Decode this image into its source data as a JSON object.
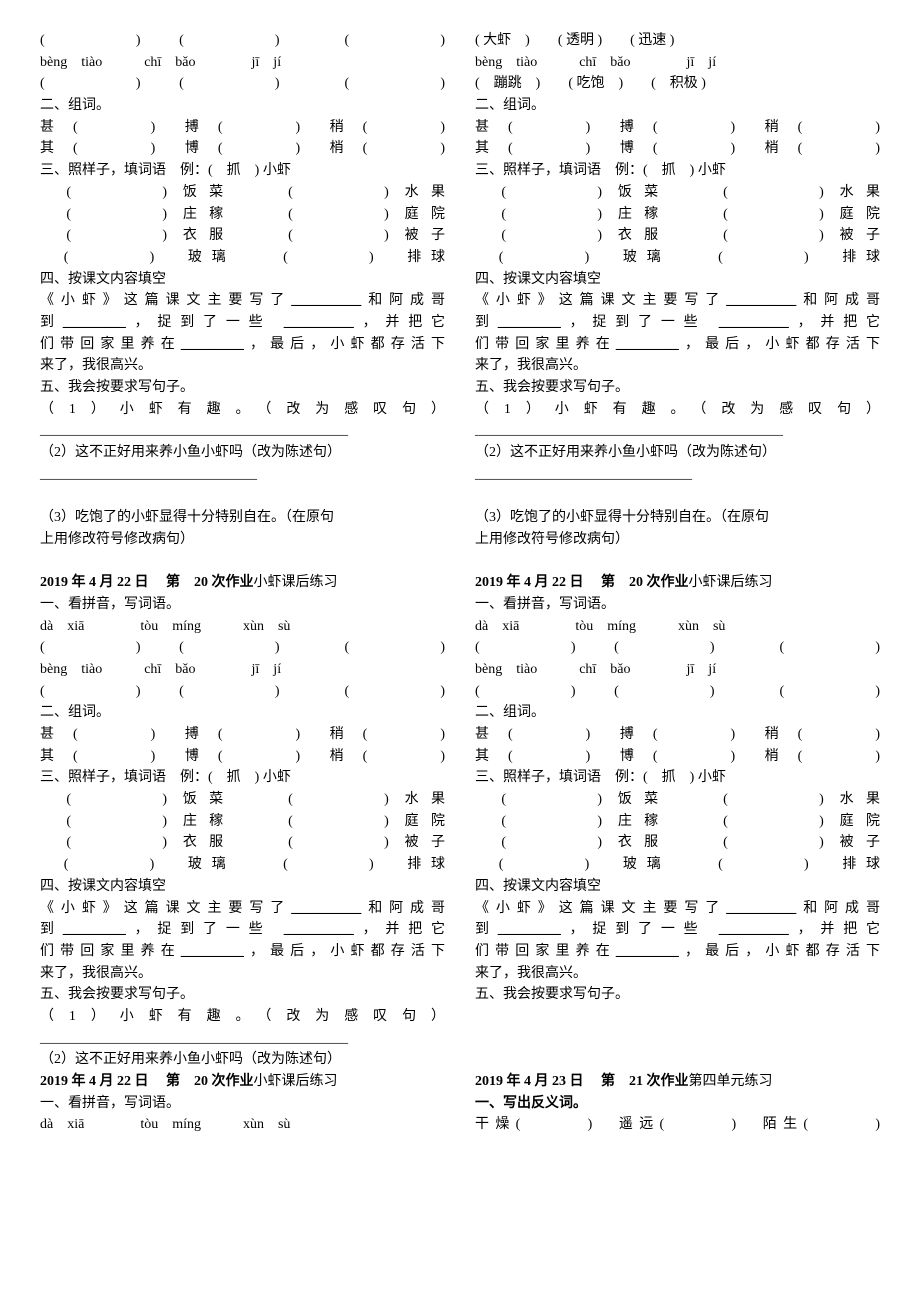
{
  "pinyin_row1": "(　　　)　(　　　)　　(　　　)",
  "pinyin_row1_filled": "( 大虾　)　　( 透明 )　　( 迅速 )",
  "pinyin_a": "bèng　tiào　　　chī　bǎo　　　　jī　jí",
  "pinyin_row2": "(　　　)　(　　　)　　(　　　)",
  "pinyin_row2_filled": "(　蹦跳　)　　( 吃饱　)　　(　积极 )",
  "s2_title": "二、组词。",
  "s2_l1": "甚 (　　　)　搏 (　　　)　稍 (　　　)",
  "s2_l2": "其 (　　　)　博 (　　　)　梢 (　　　)",
  "s3_title": "三、照样子，填词语　例：(　抓　) 小虾",
  "s3_l1": "　(　　　) 饭菜　　(　　　) 水果",
  "s3_l2": "　(　　　) 庄稼　　(　　　) 庭院",
  "s3_l3": "　(　　　) 衣服　　(　　　) 被子",
  "s3_l4": "　(　　　)　玻璃　　(　　　)　排球",
  "s4_title": "四、按课文内容填空",
  "s4_l1a": "《小虾》这篇课文主要写了",
  "s4_l1b": "和阿成哥",
  "s4_l2a": "到",
  "s4_l2b": "，捉到了一些",
  "s4_l2c": "，并把它",
  "s4_l3a": "们带回家里养在",
  "s4_l3b": "，最后，小虾都存活下",
  "s4_l4": "来了，我很高兴。",
  "s5_title": "五、我会按要求写句子。",
  "s5_q1": "（1）小虾有趣。（改为感叹句）",
  "s5_q2": "（2）这不正好用来养小鱼小虾吗（改为陈述句）",
  "s5_q3a": "（3）吃饱了的小虾显得十分特别自在。（在原句",
  "s5_q3b": "上用修改符号修改病句）",
  "hw20_date": "2019 年 4 月 22 日　 第　20 次作业",
  "hw20_title": "小虾课后练习",
  "s1_title": "一、看拼音，写词语。",
  "pinyin_b": "dà　xiā　　　　tòu　míng　　　xùn　sù",
  "blank_line": "____________________________________________",
  "blank_line2": "_______________________________",
  "hw21_date": "2019 年 4 月 23 日　 第　21 次作业",
  "hw21_title": "第四单元练习",
  "hw21_s1": "一、写出反义词。",
  "hw21_l1": "干燥(　　　)　遥远(　　　)　陌生(　　　)",
  "blank10": "__________",
  "blank9": "_________"
}
